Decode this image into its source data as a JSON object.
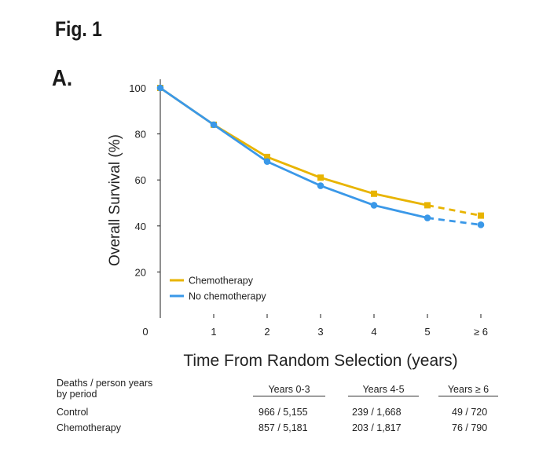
{
  "figure_label": "Fig. 1",
  "panel_label": "A.",
  "chart_data": {
    "type": "line",
    "xlabel": "Time From Random Selection (years)",
    "ylabel": "Overall Survival (%)",
    "x_ticks": [
      "0",
      "1",
      "2",
      "3",
      "4",
      "5",
      "≥ 6"
    ],
    "y_ticks": [
      "20",
      "40",
      "60",
      "80",
      "100"
    ],
    "xlim": [
      0,
      6
    ],
    "ylim": [
      0,
      100
    ],
    "legend_position": "bottom-left",
    "series": [
      {
        "name": "Chemotherapy",
        "color": "#e8b400",
        "marker": "square",
        "x": [
          0,
          1,
          2,
          3,
          4,
          5,
          6
        ],
        "y": [
          100,
          84,
          70,
          61,
          54,
          49,
          44.5
        ],
        "dashed_from_index": 5
      },
      {
        "name": "No chemotherapy",
        "color": "#3a98e8",
        "marker": "circle",
        "x": [
          0,
          1,
          2,
          3,
          4,
          5,
          6
        ],
        "y": [
          100,
          84,
          68,
          57.5,
          49,
          43.5,
          40.5
        ],
        "dashed_from_index": 5
      }
    ]
  },
  "table": {
    "header": "Deaths / person years\nby period",
    "periods": [
      "Years 0-3",
      "Years 4-5",
      "Years ≥ 6"
    ],
    "rows": [
      {
        "label": "Control",
        "values": [
          "966 / 5,155",
          "239 / 1,668",
          "49 / 720"
        ]
      },
      {
        "label": "Chemotherapy",
        "values": [
          "857 / 5,181",
          "203 / 1,817",
          "76 / 790"
        ]
      }
    ]
  }
}
